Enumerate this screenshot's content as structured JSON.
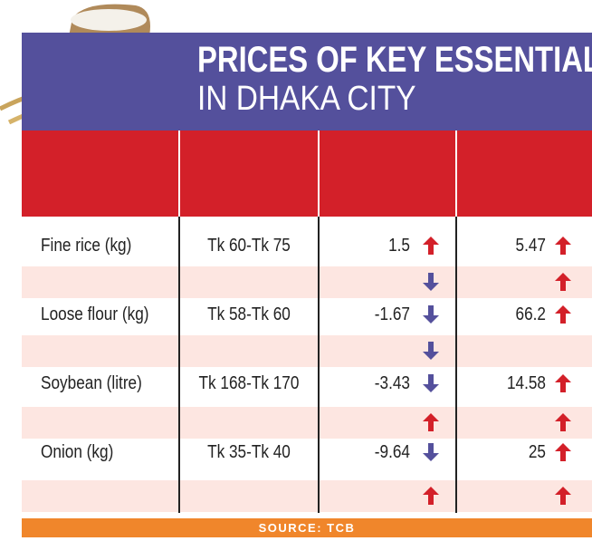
{
  "title": {
    "line1": "PRICES OF KEY ESSENTIALS",
    "line2": "IN DHAKA CITY"
  },
  "source": "SOURCE: TCB",
  "colors": {
    "title_band": "#54509c",
    "header_band": "#d32029",
    "pink_row": "#fde6e1",
    "up_arrow": "#d32029",
    "down_arrow": "#54509c",
    "footer": "#f0862b"
  },
  "chart_data": {
    "type": "table",
    "columns": [
      "",
      "",
      "",
      ""
    ],
    "rows": [
      {
        "item": "Fine rice (kg)",
        "price": "Tk 60-Tk 75",
        "change_a": "1.5",
        "dir_a": "up",
        "change_b": "5.47",
        "dir_b": "up"
      },
      {
        "item": "Loose flour (kg)",
        "price": "Tk 58-Tk 60",
        "change_a": "-1.67",
        "dir_a": "down",
        "change_b": "66.2",
        "dir_b": "up"
      },
      {
        "item": "Soybean (litre)",
        "price": "Tk 168-Tk 170",
        "change_a": "-3.43",
        "dir_a": "down",
        "change_b": "14.58",
        "dir_b": "up"
      },
      {
        "item": "Onion (kg)",
        "price": "Tk 35-Tk 40",
        "change_a": "-9.64",
        "dir_a": "down",
        "change_b": "25",
        "dir_b": "up"
      }
    ],
    "spacer_arrows": [
      {
        "a": "down",
        "b": "up"
      },
      {
        "a": "down",
        "b": ""
      },
      {
        "a": "up",
        "b": "up"
      },
      {
        "a": "up",
        "b": "up"
      }
    ]
  }
}
